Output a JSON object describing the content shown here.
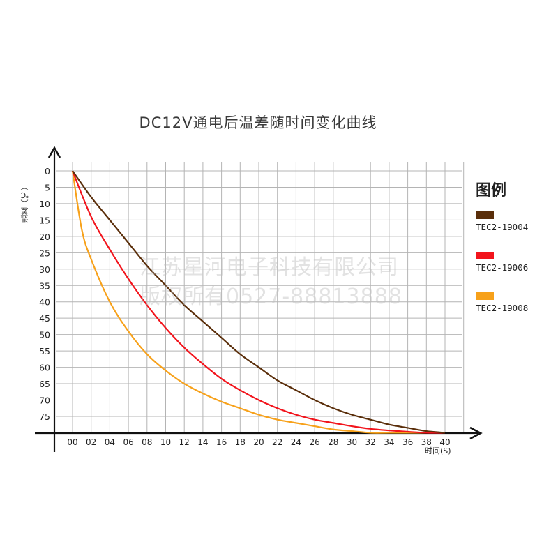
{
  "title": "DC12V通电后温差随时间变化曲线",
  "y_axis_label": "温差（℃）",
  "x_axis_label": "时间(S)",
  "legend": {
    "title": "图例",
    "items": [
      {
        "label": "TEC2-19004",
        "color": "#5a2e0a"
      },
      {
        "label": "TEC2-19006",
        "color": "#f2141c"
      },
      {
        "label": "TEC2-19008",
        "color": "#f7a11a"
      }
    ]
  },
  "watermark": {
    "line1": "江苏星河电子科技有限公司",
    "line2": "版权所有0527-88813888"
  },
  "chart_data": {
    "type": "line",
    "title": "DC12V通电后温差随时间变化曲线",
    "xlabel": "时间(S)",
    "ylabel": "温差（℃）",
    "x_tick_labels": [
      "00",
      "02",
      "04",
      "06",
      "08",
      "10",
      "12",
      "14",
      "16",
      "18",
      "20",
      "22",
      "24",
      "26",
      "28",
      "30",
      "32",
      "34",
      "36",
      "38",
      "40"
    ],
    "y_tick_labels": [
      "0",
      "5",
      "10",
      "15",
      "20",
      "25",
      "30",
      "35",
      "40",
      "45",
      "50",
      "55",
      "60",
      "65",
      "70",
      "75"
    ],
    "xlim": [
      0,
      40
    ],
    "ylim": [
      0,
      80
    ],
    "y_inverted": true,
    "grid": true,
    "legend_position": "right",
    "x": [
      0,
      2,
      4,
      6,
      8,
      10,
      12,
      14,
      16,
      18,
      20,
      22,
      24,
      26,
      28,
      30,
      32,
      34,
      36,
      38,
      40
    ],
    "series": [
      {
        "name": "TEC2-19004",
        "color": "#5a2e0a",
        "values": [
          0,
          8,
          15,
          22,
          29,
          35,
          41,
          46,
          51,
          56,
          60,
          64,
          67,
          70,
          72.5,
          74.5,
          76,
          77.5,
          78.5,
          79.5,
          80
        ]
      },
      {
        "name": "TEC2-19006",
        "color": "#f2141c",
        "values": [
          0,
          14,
          24,
          33,
          41,
          48,
          54,
          59,
          63.5,
          67,
          70,
          72.5,
          74.5,
          76,
          77,
          78,
          78.8,
          79.3,
          79.7,
          80,
          80
        ]
      },
      {
        "name": "TEC2-19008",
        "color": "#f7a11a",
        "values": [
          0,
          27,
          40,
          49,
          56,
          61,
          65,
          68,
          70.5,
          72.5,
          74.5,
          76,
          77,
          78,
          79,
          79.5,
          80,
          80,
          80,
          80,
          80
        ]
      }
    ]
  }
}
